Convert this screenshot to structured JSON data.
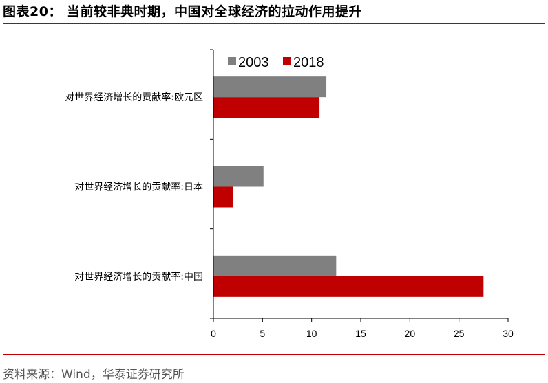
{
  "header": {
    "title": "图表20：  当前较非典时期，中国对全球经济的拉动作用提升"
  },
  "footer": {
    "source": "资料来源：Wind，华泰证券研究所"
  },
  "chart_data": {
    "type": "bar",
    "orientation": "horizontal",
    "categories": [
      "对世界经济增长的贡献率:欧元区",
      "对世界经济增长的贡献率:日本",
      "对世界经济增长的贡献率:中国"
    ],
    "series": [
      {
        "name": "2003",
        "color": "#808080",
        "values": [
          11.5,
          5.1,
          12.5
        ]
      },
      {
        "name": "2018",
        "color": "#c00000",
        "values": [
          10.8,
          2.0,
          27.5
        ]
      }
    ],
    "xlim": [
      0,
      30
    ],
    "xticks": [
      0,
      5,
      10,
      15,
      20,
      25,
      30
    ],
    "legend": "top",
    "grid": false
  }
}
